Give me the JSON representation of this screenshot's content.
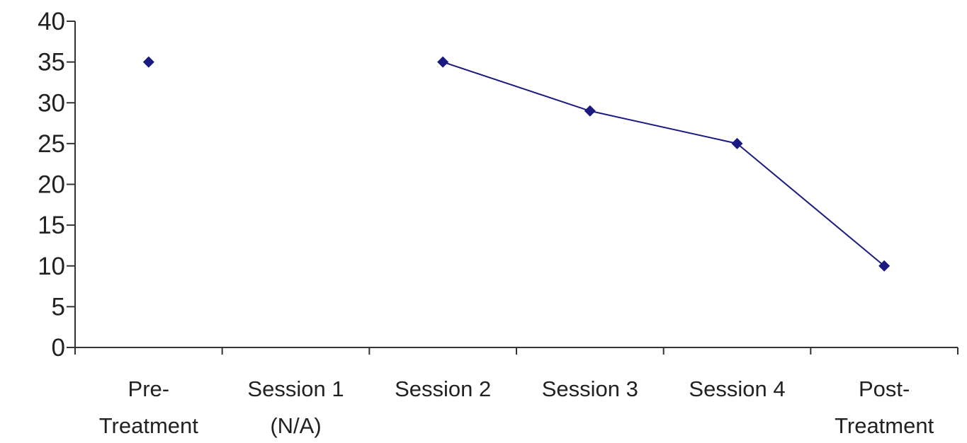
{
  "chart_data": {
    "type": "line",
    "title": "",
    "xlabel": "",
    "ylabel": "",
    "categories": [
      [
        "Pre-",
        "Treatment"
      ],
      [
        "Session 1",
        "(N/A)"
      ],
      [
        "Session 2"
      ],
      [
        "Session 3"
      ],
      [
        "Session 4"
      ],
      [
        "Post-",
        "Treatment"
      ]
    ],
    "series": [
      {
        "values": [
          35,
          null,
          35,
          29,
          25,
          10
        ]
      }
    ],
    "ylim": [
      0,
      40
    ],
    "yticks": [
      0,
      5,
      10,
      15,
      20,
      25,
      30,
      35,
      40
    ],
    "grid": false,
    "legend": "none",
    "colors": {
      "series": "#1a1a80",
      "axis": "#333333",
      "text": "#222222"
    },
    "marker": "diamond"
  }
}
